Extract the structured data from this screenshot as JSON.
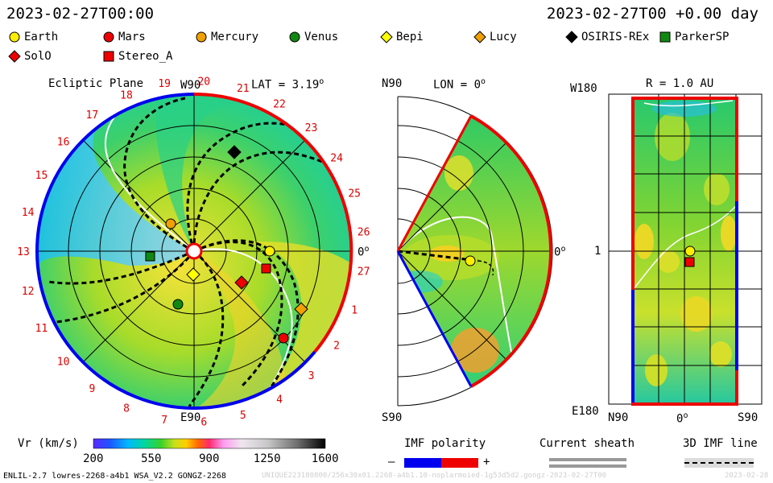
{
  "header": {
    "datetime_left": "2023-02-27T00:00",
    "datetime_right": "2023-02-27T00 +0.00 day"
  },
  "legend": [
    {
      "name": "Earth",
      "shape": "circle",
      "color": "#ffee00"
    },
    {
      "name": "Mars",
      "shape": "circle",
      "color": "#ee0000"
    },
    {
      "name": "Mercury",
      "shape": "circle",
      "color": "#f0a000"
    },
    {
      "name": "Venus",
      "shape": "circle",
      "color": "#118811"
    },
    {
      "name": "Bepi",
      "shape": "diamond",
      "color": "#ffff00"
    },
    {
      "name": "Lucy",
      "shape": "diamond",
      "color": "#f0a000"
    },
    {
      "name": "OSIRIS-REx",
      "shape": "diamond",
      "color": "#000000"
    },
    {
      "name": "ParkerSP",
      "shape": "square",
      "color": "#118811"
    },
    {
      "name": "SolO",
      "shape": "diamond",
      "color": "#ee0000"
    },
    {
      "name": "Stereo_A",
      "shape": "square",
      "color": "#ee0000"
    }
  ],
  "panels": {
    "ecliptic": {
      "title": "Ecliptic Plane",
      "lat_label": "LAT = 3.19",
      "degree_mark": "o",
      "w90": "W90",
      "e90": "E90",
      "zero": "0",
      "carrington": [
        "19",
        "20",
        "21",
        "22",
        "23",
        "24",
        "25",
        "26",
        "27",
        "1",
        "2",
        "3",
        "4",
        "5",
        "6",
        "7",
        "8",
        "9",
        "10",
        "11",
        "12",
        "13",
        "14",
        "15",
        "16",
        "17",
        "18"
      ]
    },
    "meridional": {
      "title": "LON = 0",
      "degree_mark": "o",
      "n90": "N90",
      "s90": "S90",
      "zero": "0"
    },
    "radial": {
      "title": "R = 1.0 AU",
      "w180": "W180",
      "e180": "E180",
      "n90": "N90",
      "s90": "S90",
      "zero": "0",
      "one": "1",
      "degree_mark": "o"
    }
  },
  "colorbar": {
    "label": "Vr (km/s)",
    "ticks": [
      "200",
      "550",
      "900",
      "1250",
      "1600"
    ],
    "min": 200,
    "max": 1600
  },
  "imf_polarity": {
    "label": "IMF polarity",
    "minus": "–",
    "plus": "+",
    "colors": [
      "#0000ee",
      "#ee0000"
    ]
  },
  "current_sheath": {
    "label": "Current sheath"
  },
  "imf_line": {
    "label": "3D IMF line"
  },
  "footer": {
    "left": "ENLIL-2.7 lowres-2268-a4b1 WSA_V2.2 GONGZ-2268",
    "right_faded": "UNIQUE223180800/256x30x01.2268-a4b1.10-noplarmoied-1g53d5d2.gongz-2023-02-27T00",
    "right_date": "2023-02-28"
  },
  "chart_data": {
    "type": "heatmap",
    "title": "",
    "quantity": "Vr (km/s)",
    "color_range": [
      200,
      1600
    ],
    "markers_ecliptic": [
      {
        "name": "Earth"
      },
      {
        "name": "Mars"
      },
      {
        "name": "Mercury"
      },
      {
        "name": "Venus"
      },
      {
        "name": "Bepi"
      },
      {
        "name": "Lucy"
      },
      {
        "name": "OSIRIS-REx"
      },
      {
        "name": "ParkerSP"
      },
      {
        "name": "SolO"
      },
      {
        "name": "Stereo_A"
      }
    ]
  }
}
